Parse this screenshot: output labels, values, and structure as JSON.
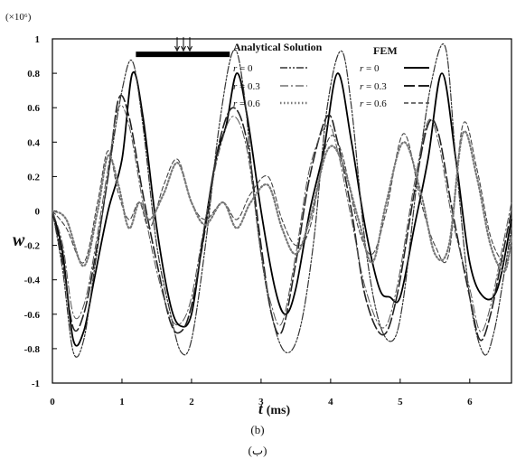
{
  "chart_data": {
    "type": "line",
    "title": "",
    "xlabel": "t (ms)",
    "ylabel": "w",
    "multiplier_label": "(×10⁶)",
    "xlim": [
      0,
      6.6
    ],
    "ylim": [
      -1,
      1
    ],
    "xticks": [
      "0",
      "1",
      "2",
      "3",
      "4",
      "5",
      "6"
    ],
    "yticks": [
      "1",
      "0.8",
      "0.6",
      "0.4",
      "0.2",
      "0",
      "-0.2",
      "-0.4",
      "-0.6",
      "-0.8",
      "-1"
    ],
    "grid": false,
    "legend": {
      "analytical_heading": "Analytical Solution",
      "fem_heading": "FEM",
      "entries": [
        "r = 0",
        "r = 0.3",
        "r = 0.6"
      ]
    },
    "load_indicator": {
      "x_start": 1.2,
      "x_end": 2.55,
      "y": 0.91
    },
    "series": [
      {
        "name": "r = 0",
        "method": "FEM",
        "style": "solid",
        "x": [
          0,
          0.15,
          0.3,
          0.45,
          0.6,
          0.8,
          1.0,
          1.15,
          1.3,
          1.5,
          1.7,
          1.85,
          2.0,
          2.15,
          2.35,
          2.5,
          2.65,
          2.8,
          3.0,
          3.2,
          3.35,
          3.5,
          3.7,
          3.9,
          4.1,
          4.3,
          4.5,
          4.7,
          4.85,
          5.0,
          5.2,
          5.4,
          5.6,
          5.8,
          6.0,
          6.2,
          6.4,
          6.6
        ],
        "y": [
          0,
          -0.25,
          -0.75,
          -0.7,
          -0.4,
          0.0,
          0.3,
          0.8,
          0.55,
          -0.1,
          -0.55,
          -0.67,
          -0.6,
          -0.2,
          0.3,
          0.5,
          0.8,
          0.55,
          0.0,
          -0.45,
          -0.6,
          -0.45,
          0.0,
          0.35,
          0.8,
          0.4,
          -0.1,
          -0.45,
          -0.5,
          -0.5,
          -0.1,
          0.3,
          0.8,
          0.3,
          -0.3,
          -0.5,
          -0.45,
          -0.05
        ]
      },
      {
        "name": "r = 0.3",
        "method": "FEM",
        "style": "long-dash",
        "x": [
          0,
          0.15,
          0.3,
          0.45,
          0.6,
          0.8,
          0.95,
          1.1,
          1.3,
          1.5,
          1.7,
          1.85,
          2.0,
          2.2,
          2.4,
          2.6,
          2.8,
          3.0,
          3.15,
          3.3,
          3.5,
          3.7,
          3.95,
          4.1,
          4.3,
          4.5,
          4.75,
          4.95,
          5.2,
          5.4,
          5.55,
          5.75,
          6.0,
          6.15,
          6.3,
          6.45,
          6.6
        ],
        "y": [
          0,
          -0.3,
          -0.68,
          -0.6,
          -0.3,
          0.2,
          0.65,
          0.55,
          0.1,
          -0.3,
          -0.65,
          -0.7,
          -0.55,
          -0.1,
          0.4,
          0.6,
          0.4,
          -0.2,
          -0.6,
          -0.7,
          -0.3,
          0.2,
          0.55,
          0.4,
          0.0,
          -0.5,
          -0.72,
          -0.5,
          0.1,
          0.5,
          0.45,
          0.0,
          -0.5,
          -0.75,
          -0.6,
          -0.3,
          0.0
        ]
      },
      {
        "name": "r = 0.6",
        "method": "FEM",
        "style": "short-dash",
        "x": [
          0,
          0.2,
          0.45,
          0.65,
          0.8,
          0.95,
          1.1,
          1.25,
          1.4,
          1.6,
          1.8,
          2.0,
          2.2,
          2.45,
          2.65,
          2.85,
          3.1,
          3.3,
          3.5,
          3.7,
          3.95,
          4.15,
          4.4,
          4.6,
          4.8,
          5.05,
          5.3,
          5.5,
          5.7,
          5.9,
          6.1,
          6.3,
          6.5,
          6.6
        ],
        "y": [
          0,
          -0.1,
          -0.3,
          0.05,
          0.35,
          0.1,
          -0.05,
          0.05,
          -0.1,
          0.15,
          0.3,
          0.05,
          -0.05,
          0.05,
          -0.05,
          0.1,
          0.2,
          -0.05,
          -0.2,
          -0.1,
          0.4,
          0.35,
          -0.1,
          -0.25,
          0.0,
          0.45,
          0.05,
          -0.2,
          -0.25,
          0.5,
          0.25,
          -0.15,
          -0.3,
          -0.2
        ]
      },
      {
        "name": "r = 0",
        "method": "Analytical Solution",
        "style": "dash-dot-dot",
        "x": [
          0,
          0.15,
          0.3,
          0.45,
          0.6,
          0.8,
          1.0,
          1.15,
          1.3,
          1.5,
          1.7,
          1.85,
          2.0,
          2.2,
          2.4,
          2.6,
          2.75,
          2.95,
          3.15,
          3.35,
          3.55,
          3.75,
          3.95,
          4.15,
          4.3,
          4.5,
          4.7,
          4.9,
          5.05,
          5.25,
          5.45,
          5.65,
          5.8,
          6.0,
          6.2,
          6.35,
          6.5,
          6.6
        ],
        "y": [
          0,
          -0.35,
          -0.82,
          -0.75,
          -0.35,
          0.2,
          0.7,
          0.87,
          0.5,
          -0.2,
          -0.6,
          -0.82,
          -0.75,
          -0.2,
          0.5,
          0.93,
          0.7,
          -0.1,
          -0.6,
          -0.82,
          -0.7,
          -0.2,
          0.6,
          0.93,
          0.6,
          -0.2,
          -0.65,
          -0.75,
          -0.5,
          0.2,
          0.75,
          0.95,
          0.3,
          -0.5,
          -0.83,
          -0.7,
          -0.35,
          -0.1
        ]
      },
      {
        "name": "r = 0.3",
        "method": "Analytical Solution",
        "style": "dash-dot",
        "x": [
          0,
          0.15,
          0.3,
          0.45,
          0.6,
          0.8,
          0.95,
          1.1,
          1.3,
          1.5,
          1.7,
          1.85,
          2.0,
          2.2,
          2.4,
          2.6,
          2.8,
          3.0,
          3.15,
          3.3,
          3.5,
          3.7,
          3.95,
          4.1,
          4.3,
          4.5,
          4.75,
          4.95,
          5.2,
          5.4,
          5.55,
          5.75,
          6.0,
          6.15,
          6.3,
          6.45,
          6.6
        ],
        "y": [
          0,
          -0.2,
          -0.6,
          -0.55,
          -0.25,
          0.25,
          0.6,
          0.5,
          0.05,
          -0.35,
          -0.62,
          -0.65,
          -0.5,
          -0.05,
          0.35,
          0.55,
          0.35,
          -0.25,
          -0.55,
          -0.65,
          -0.25,
          0.25,
          0.5,
          0.35,
          -0.05,
          -0.45,
          -0.68,
          -0.45,
          0.15,
          0.52,
          0.4,
          -0.05,
          -0.45,
          -0.7,
          -0.55,
          -0.25,
          0.05
        ]
      },
      {
        "name": "r = 0.6",
        "method": "Analytical Solution",
        "style": "dotted",
        "x": [
          0,
          0.2,
          0.45,
          0.65,
          0.8,
          0.95,
          1.1,
          1.25,
          1.4,
          1.6,
          1.8,
          2.0,
          2.2,
          2.45,
          2.65,
          2.85,
          3.1,
          3.3,
          3.5,
          3.7,
          3.95,
          4.15,
          4.4,
          4.6,
          4.8,
          5.05,
          5.3,
          5.5,
          5.7,
          5.9,
          6.1,
          6.3,
          6.5,
          6.6
        ],
        "y": [
          0,
          -0.05,
          -0.32,
          0.0,
          0.32,
          0.15,
          -0.1,
          0.05,
          -0.05,
          0.1,
          0.28,
          0.05,
          -0.08,
          0.05,
          -0.1,
          0.05,
          0.15,
          -0.1,
          -0.25,
          -0.05,
          0.35,
          0.3,
          -0.05,
          -0.3,
          0.05,
          0.4,
          0.1,
          -0.25,
          -0.2,
          0.45,
          0.2,
          -0.2,
          -0.35,
          -0.15
        ]
      }
    ]
  },
  "caption": "(b)",
  "caption_secondary": "(ب)"
}
